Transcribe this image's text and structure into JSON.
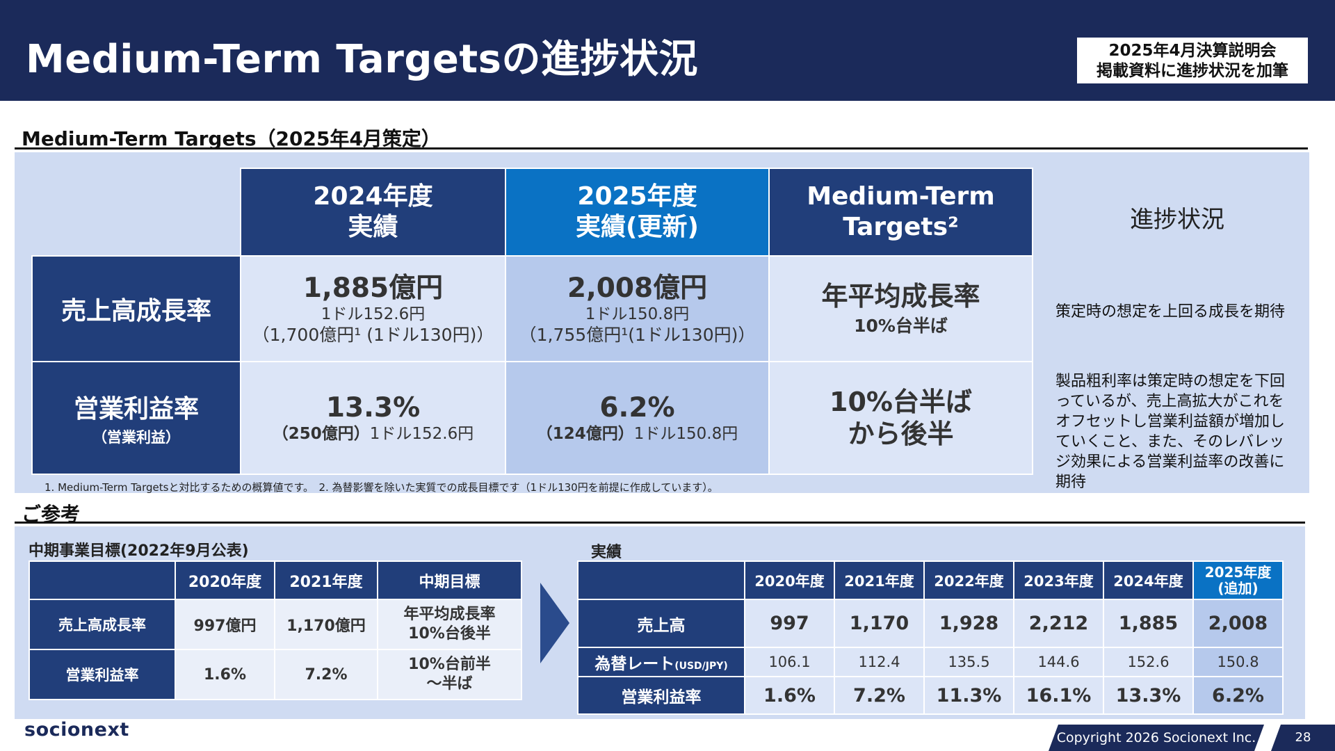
{
  "header": {
    "title": "Medium-Term Targetsの進捗状況",
    "note_line1": "2025年4月決算説明会",
    "note_line2": "掲載資料に進捗状況を加筆"
  },
  "section1": {
    "title": "Medium-Term Targets（2025年4月策定）",
    "col_headers": [
      {
        "line1": "2024年度",
        "line2": "実績"
      },
      {
        "line1": "2025年度",
        "line2": "実績(更新)"
      },
      {
        "line1": "Medium-Term",
        "line2": "Targets²"
      }
    ],
    "progress_header": "進捗状況",
    "rows": {
      "sales": {
        "label": "売上高成長率",
        "fy2024_main": "1,885億円",
        "fy2024_rate": "1ドル152.6円",
        "fy2024_paren": "（1,700億円¹ (1ドル130円)）",
        "fy2025_main": "2,008億円",
        "fy2025_rate": "1ドル150.8円",
        "fy2025_paren": "（1,755億円¹(1ドル130円)）",
        "target_main": "年平均成長率",
        "target_sub": "10%台半ば",
        "progress": "策定時の想定を上回る成長を期待"
      },
      "op_margin": {
        "label": "営業利益率",
        "label_sub": "（営業利益）",
        "fy2024_main": "13.3%",
        "fy2024_amount": "（250億円）",
        "fy2024_rate": "1ドル152.6円",
        "fy2025_main": "6.2%",
        "fy2025_amount": "（124億円）",
        "fy2025_rate": "1ドル150.8円",
        "target_line1": "10%台半ば",
        "target_line2": "から後半",
        "progress": "製品粗利率は策定時の想定を下回っているが、売上高拡大がこれをオフセットし営業利益額が増加していくこと、また、そのレバレッジ効果による営業利益率の改善に期待"
      }
    },
    "footnote": "1. Medium-Term Targetsと対比するための概算値です。　2. 為替影響を除いた実質での成長目標です（1ドル130円を前提に作成しています）。"
  },
  "section2": {
    "title": "ご参考",
    "left": {
      "title": "中期事業目標(2022年9月公表)",
      "headers": [
        "2020年度",
        "2021年度",
        "中期目標"
      ],
      "rows": [
        {
          "label": "売上高成長率",
          "values": [
            "997億円",
            "1,170億円"
          ],
          "target_line1": "年平均成長率",
          "target_line2": "10%台後半"
        },
        {
          "label": "営業利益率",
          "values": [
            "1.6%",
            "7.2%"
          ],
          "target_line1": "10%台前半",
          "target_line2": "～半ば"
        }
      ]
    },
    "right": {
      "title": "実績",
      "headers": [
        "2020年度",
        "2021年度",
        "2022年度",
        "2023年度",
        "2024年度"
      ],
      "header_last_line1": "2025年度",
      "header_last_line2": "(追加)",
      "rows": [
        {
          "label": "売上高",
          "label_small": "",
          "values": [
            "997",
            "1,170",
            "1,928",
            "2,212",
            "1,885",
            "2,008"
          ]
        },
        {
          "label": "為替レート",
          "label_small": "(USD/JPY)",
          "values": [
            "106.1",
            "112.4",
            "135.5",
            "144.6",
            "152.6",
            "150.8"
          ]
        },
        {
          "label": "営業利益率",
          "label_small": "",
          "values": [
            "1.6%",
            "7.2%",
            "11.3%",
            "16.1%",
            "13.3%",
            "6.2%"
          ]
        }
      ]
    }
  },
  "footer": {
    "logo": "socionext",
    "copyright": "Copyright 2026 Socionext Inc.",
    "page": "28"
  },
  "colors": {
    "navy": "#1b2a5a",
    "table_navy": "#213e7a",
    "accent_blue": "#0a72c4",
    "panel_bg": "#cfdbf2"
  }
}
